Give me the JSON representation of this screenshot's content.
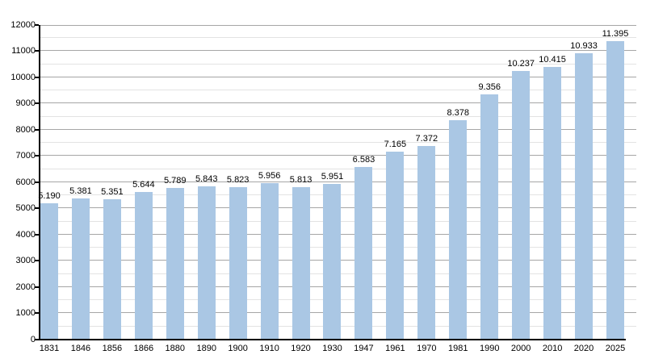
{
  "chart_data": {
    "type": "bar",
    "title": "",
    "xlabel": "",
    "ylabel": "",
    "categories": [
      "1831",
      "1846",
      "1856",
      "1866",
      "1880",
      "1890",
      "1900",
      "1910",
      "1920",
      "1930",
      "1947",
      "1961",
      "1970",
      "1981",
      "1990",
      "2000",
      "2010",
      "2020",
      "2025"
    ],
    "values": [
      5190,
      5381,
      5351,
      5644,
      5789,
      5843,
      5823,
      5956,
      5813,
      5951,
      6583,
      7165,
      7372,
      8378,
      9356,
      10237,
      10415,
      10933,
      11395
    ],
    "bar_labels": [
      "5.190",
      "5.381",
      "5.351",
      "5.644",
      "5.789",
      "5.843",
      "5.823",
      "5.956",
      "5.813",
      "5.951",
      "6.583",
      "7.165",
      "7.372",
      "8.378",
      "9.356",
      "10.237",
      "10.415",
      "10.933",
      "11.395"
    ],
    "ylim": [
      0,
      12000
    ],
    "y_major_step": 1000,
    "y_minor_step": 500,
    "y_tick_labels": [
      "0",
      "1000",
      "2000",
      "3000",
      "4000",
      "5000",
      "6000",
      "7000",
      "8000",
      "9000",
      "10000",
      "11000",
      "12000"
    ],
    "grid": "on",
    "legend": "none",
    "colors": {
      "bar_fill": "#aac7e4",
      "major_gridline": "#a6a6a6",
      "minor_gridline": "#e3e3e3",
      "axis_line": "#000000",
      "text": "#000000",
      "background": "#ffffff"
    }
  }
}
